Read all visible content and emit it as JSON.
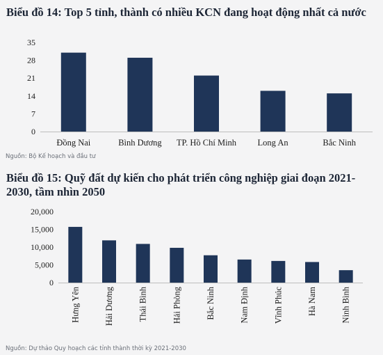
{
  "chart1": {
    "title": "Biểu đồ 14: Top 5 tỉnh, thành có nhiều KCN đang hoạt động nhất cả nước",
    "source": "Nguồn: Bộ Kế hoạch  và đầu tư"
  },
  "chart2": {
    "title": "Biểu đồ 15: Quỹ đất dự kiến cho phát triển công nghiệp giai đoạn 2021-2030, tầm nhìn 2050",
    "source": "Nguồn: Dự thảo Quy hoạch các tỉnh thành thời kỳ 2021-2030"
  },
  "colors": {
    "bar": "#1f3558",
    "background": "#f4f4f5"
  },
  "chart_data": [
    {
      "type": "bar",
      "title": "Biểu đồ 14: Top 5 tỉnh, thành có nhiều KCN đang hoạt động nhất cả nước",
      "categories": [
        "Đồng Nai",
        "Bình Dương",
        "TP. Hồ Chí Minh",
        "Long An",
        "Bắc Ninh"
      ],
      "values": [
        31,
        29,
        22,
        16,
        15
      ],
      "yticks": [
        "0",
        "7",
        "14",
        "21",
        "28",
        "35"
      ],
      "ylim": [
        0,
        35
      ],
      "grid": false
    },
    {
      "type": "bar",
      "title": "Biểu đồ 15: Quỹ đất dự kiến cho phát triển công nghiệp giai đoạn 2021-2030, tầm nhìn 2050",
      "categories": [
        "Hưng Yên",
        "Hải Dương",
        "Thái Bình",
        "Hải Phòng",
        "Bắc Ninh",
        "Nam Định",
        "Vĩnh Phúc",
        "Hà Nam",
        "Ninh Bình"
      ],
      "values": [
        15700,
        11900,
        10900,
        9800,
        7700,
        6500,
        6100,
        5800,
        3500
      ],
      "yticks": [
        "0",
        "5,000",
        "10,000",
        "15,000",
        "20,000"
      ],
      "ylim": [
        0,
        20000
      ],
      "grid": false
    }
  ]
}
